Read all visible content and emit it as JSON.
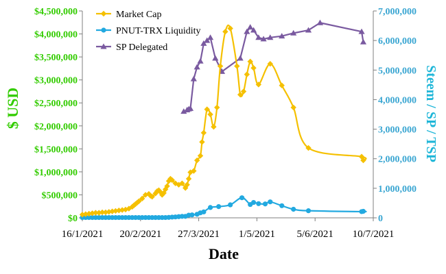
{
  "chart_data": {
    "type": "line",
    "title": "",
    "xlabel": "Date",
    "ylabel_left": "$ USD",
    "ylabel_right": "Steem / SP / TSP",
    "x_ticks": [
      "16/1/2021",
      "20/2/2021",
      "27/3/2021",
      "1/5/2021",
      "5/6/2021",
      "10/7/2021"
    ],
    "x_tick_values": [
      0,
      35,
      70,
      105,
      140,
      175
    ],
    "xlim": [
      0,
      175
    ],
    "ylim_left": [
      0,
      4500000
    ],
    "ylim_right": [
      0,
      7000000
    ],
    "y_ticks_left": [
      "$0",
      "$500,000",
      "$1,000,000",
      "$1,500,000",
      "$2,000,000",
      "$2,500,000",
      "$3,000,000",
      "$3,500,000",
      "$4,000,000",
      "$4,500,000"
    ],
    "y_tick_values_left": [
      0,
      500000,
      1000000,
      1500000,
      2000000,
      2500000,
      3000000,
      3500000,
      4000000,
      4500000
    ],
    "y_ticks_right": [
      "0",
      "1,000,000",
      "2,000,000",
      "3,000,000",
      "4,000,000",
      "5,000,000",
      "6,000,000",
      "7,000,000"
    ],
    "y_tick_values_right": [
      0,
      1000000,
      2000000,
      3000000,
      4000000,
      5000000,
      6000000,
      7000000
    ],
    "legend_position": "top-left",
    "x_unit_note": "x values are days after 16/1/2021",
    "series": [
      {
        "name": "Market Cap",
        "axis": "left",
        "color": "#f5c000",
        "marker": "diamond",
        "x": [
          0,
          2,
          4,
          6,
          8,
          10,
          12,
          14,
          16,
          18,
          20,
          22,
          24,
          26,
          28,
          30,
          31,
          32,
          33,
          34,
          36,
          38,
          40,
          41,
          42,
          44,
          45,
          46,
          47,
          48,
          49,
          50,
          51,
          52,
          53,
          54,
          56,
          58,
          60,
          62,
          63,
          64,
          65,
          67,
          69,
          71,
          72,
          73,
          75,
          77,
          79,
          81,
          83,
          86,
          89,
          93,
          95,
          97,
          99,
          101,
          103,
          106,
          113,
          120,
          127,
          136,
          168,
          169
        ],
        "y": [
          70000,
          80000,
          90000,
          100000,
          110000,
          110000,
          120000,
          120000,
          130000,
          140000,
          150000,
          160000,
          170000,
          180000,
          200000,
          240000,
          270000,
          300000,
          330000,
          360000,
          420000,
          500000,
          520000,
          480000,
          460000,
          530000,
          580000,
          600000,
          560000,
          500000,
          540000,
          620000,
          690000,
          800000,
          850000,
          820000,
          750000,
          720000,
          750000,
          650000,
          720000,
          850000,
          990000,
          1020000,
          1250000,
          1350000,
          1650000,
          1850000,
          2360000,
          2250000,
          1980000,
          2400000,
          3300000,
          4050000,
          4120000,
          3300000,
          2680000,
          2750000,
          3120000,
          3400000,
          3260000,
          2900000,
          3350000,
          2880000,
          2400000,
          1520000,
          1330000,
          1250000
        ]
      },
      {
        "name": "PNUT-TRX Liquidity",
        "axis": "right",
        "color": "#22a9e0",
        "marker": "circle",
        "x": [
          0,
          2,
          4,
          6,
          8,
          10,
          12,
          14,
          16,
          18,
          20,
          22,
          24,
          26,
          28,
          30,
          32,
          34,
          36,
          38,
          40,
          42,
          44,
          46,
          48,
          50,
          52,
          54,
          56,
          58,
          60,
          62,
          64,
          66,
          69,
          71,
          73,
          77,
          82,
          89,
          96,
          101,
          103,
          106,
          110,
          113,
          120,
          127,
          136,
          168,
          169
        ],
        "y": [
          10000,
          10000,
          10000,
          10000,
          10000,
          10000,
          10000,
          10000,
          10000,
          10000,
          10000,
          10000,
          10000,
          10000,
          10000,
          10000,
          10000,
          10000,
          10000,
          10000,
          10000,
          10000,
          10000,
          10000,
          10000,
          10000,
          15000,
          25000,
          30000,
          40000,
          50000,
          50000,
          90000,
          100000,
          120000,
          170000,
          200000,
          350000,
          380000,
          440000,
          680000,
          450000,
          520000,
          480000,
          470000,
          540000,
          410000,
          290000,
          240000,
          210000,
          220000
        ]
      },
      {
        "name": "SP Delegated",
        "axis": "right",
        "color": "#7a5aa0",
        "marker": "triangle",
        "x": [
          61,
          63,
          64,
          65,
          67,
          69,
          71,
          73,
          75,
          77,
          80,
          84,
          95,
          99,
          101,
          103,
          106,
          109,
          113,
          120,
          127,
          136,
          143,
          168,
          169
        ],
        "y": [
          3600000,
          3650000,
          3680000,
          3700000,
          4700000,
          5100000,
          5300000,
          5900000,
          6000000,
          6100000,
          5400000,
          4950000,
          5400000,
          6300000,
          6450000,
          6350000,
          6100000,
          6050000,
          6100000,
          6150000,
          6250000,
          6350000,
          6600000,
          6300000,
          5950000
        ]
      }
    ]
  }
}
